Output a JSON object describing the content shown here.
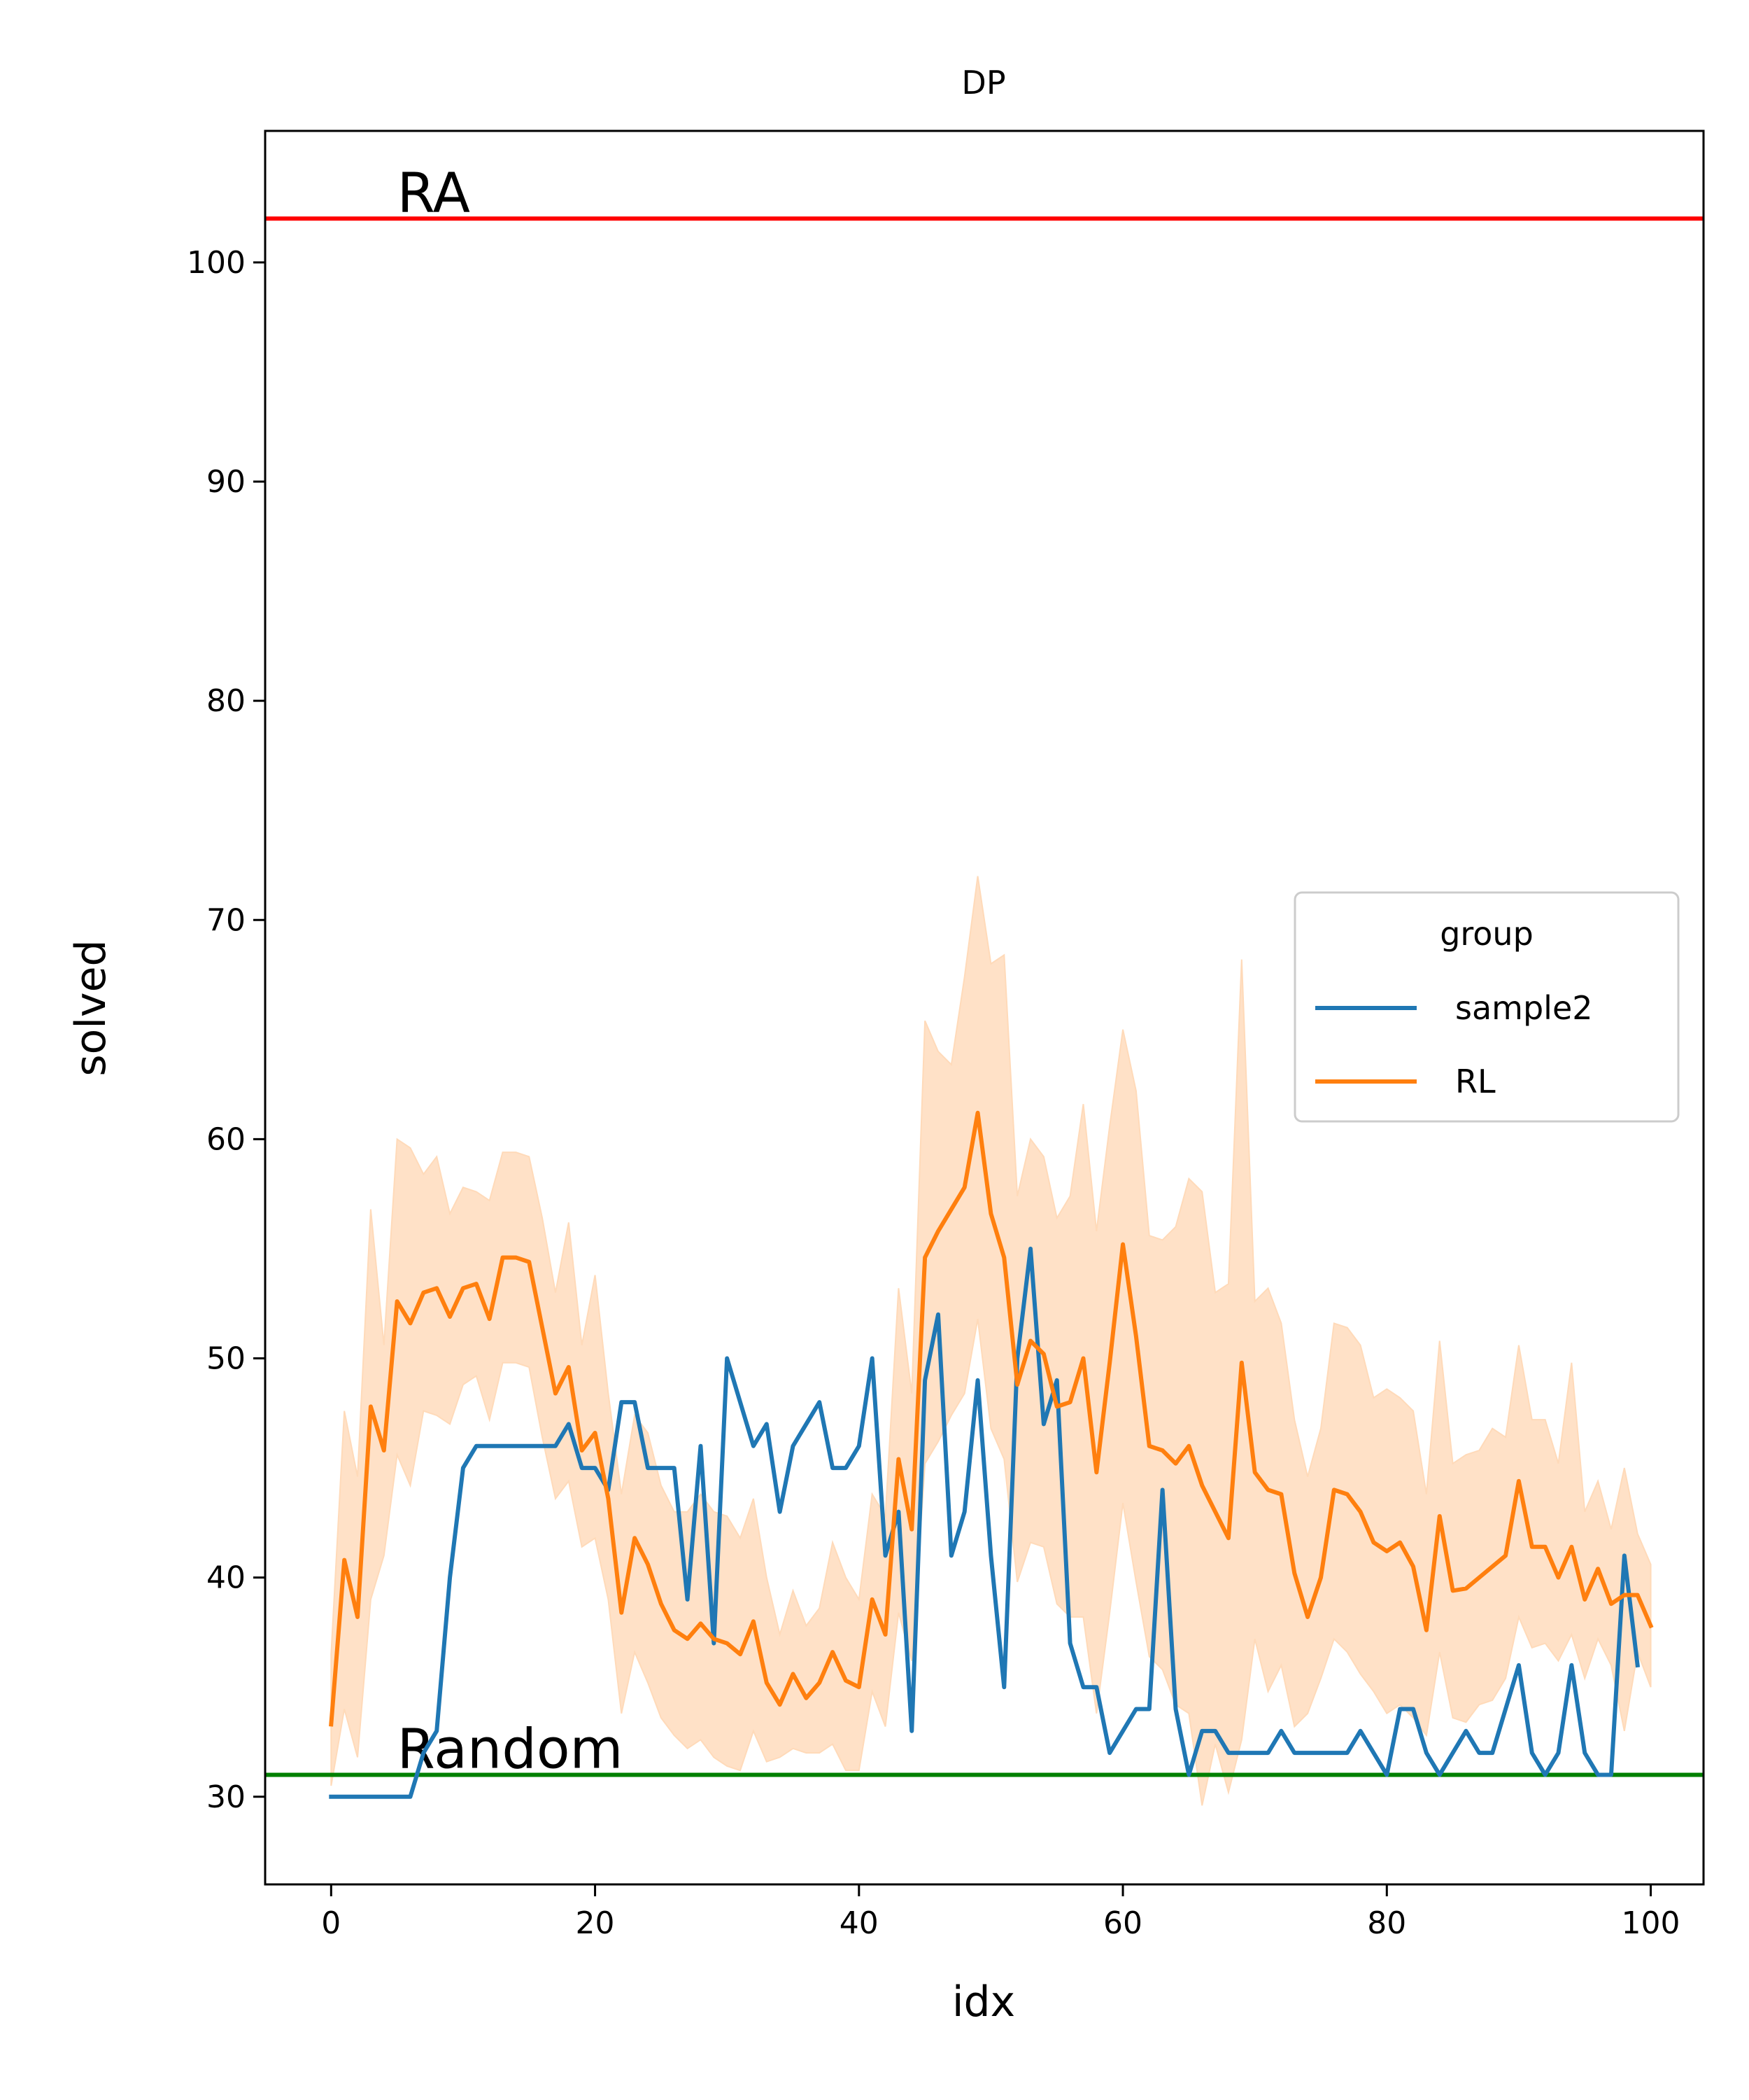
{
  "chart_data": {
    "type": "line",
    "title": "DP",
    "xlabel": "idx",
    "ylabel": "solved",
    "xlim": [
      -5,
      104
    ],
    "ylim": [
      26,
      106
    ],
    "xticks": [
      0,
      20,
      40,
      60,
      80,
      100
    ],
    "yticks": [
      30,
      40,
      50,
      60,
      70,
      80,
      90,
      100
    ],
    "grid": false,
    "legend": {
      "title": "group",
      "position": "center-right"
    },
    "reference_lines": [
      {
        "label": "RA",
        "y": 102,
        "color": "#ff0000"
      },
      {
        "label": "Random",
        "y": 31,
        "color": "#008000"
      }
    ],
    "series": [
      {
        "name": "sample2",
        "color": "#1f77b4",
        "values": [
          30,
          30,
          30,
          30,
          30,
          30,
          30,
          32,
          33,
          40,
          45,
          46,
          46,
          46,
          46,
          46,
          46,
          46,
          47,
          45,
          45,
          44,
          48,
          48,
          45,
          45,
          45,
          39,
          46,
          37,
          50,
          48,
          46,
          47,
          43,
          46,
          47,
          48,
          45,
          45,
          46,
          50,
          41,
          43,
          33,
          49,
          52,
          41,
          43,
          49,
          41,
          35,
          50,
          55,
          47,
          49,
          37,
          35,
          35,
          32,
          33,
          34,
          34,
          44,
          34,
          31,
          33,
          33,
          32,
          32,
          32,
          32,
          33,
          32,
          32,
          32,
          32,
          32,
          33,
          32,
          31,
          34,
          34,
          32,
          31,
          32,
          33,
          32,
          32,
          34,
          36,
          32,
          31,
          32,
          36,
          32,
          31,
          31,
          41,
          36
        ]
      },
      {
        "name": "RL",
        "color": "#ff7f0e",
        "band_color": "#ffdab9",
        "values": [
          33.3,
          40.8,
          38.2,
          47.8,
          45.8,
          52.6,
          51.6,
          53.0,
          53.2,
          51.9,
          53.2,
          53.4,
          51.8,
          54.6,
          54.6,
          54.4,
          51.4,
          48.4,
          49.6,
          45.8,
          46.6,
          43.6,
          38.4,
          41.8,
          40.6,
          38.8,
          37.6,
          37.2,
          37.9,
          37.2,
          37.0,
          36.5,
          38.0,
          35.2,
          34.2,
          35.6,
          34.5,
          35.2,
          36.6,
          35.3,
          35.0,
          39.0,
          37.4,
          45.4,
          42.2,
          54.6,
          55.8,
          56.8,
          57.8,
          61.2,
          56.6,
          54.6,
          48.8,
          50.8,
          50.2,
          47.8,
          48.0,
          50.0,
          44.8,
          49.8,
          55.2,
          51.0,
          46.0,
          45.8,
          45.2,
          46.0,
          44.2,
          43.0,
          41.8,
          49.8,
          44.8,
          44.0,
          43.8,
          40.2,
          38.2,
          40.0,
          44.0,
          43.8,
          43.0,
          41.6,
          41.2,
          41.6,
          40.5,
          37.6,
          42.8,
          39.4,
          39.5,
          40.0,
          40.5,
          41.0,
          44.4,
          41.4,
          41.4,
          40.0,
          41.4,
          39.0,
          40.4,
          38.8,
          39.2,
          39.2,
          37.8
        ],
        "lower": [
          30.5,
          34.0,
          31.8,
          39.0,
          41.0,
          45.6,
          44.2,
          47.6,
          47.4,
          47.0,
          48.8,
          49.2,
          47.2,
          49.8,
          49.8,
          49.6,
          46.4,
          43.6,
          44.4,
          41.4,
          41.8,
          39.0,
          33.8,
          36.6,
          35.2,
          33.6,
          32.8,
          32.2,
          32.6,
          31.8,
          31.4,
          31.2,
          33.0,
          31.6,
          31.8,
          32.2,
          32.0,
          32.0,
          32.4,
          31.2,
          31.2,
          34.8,
          33.2,
          38.4,
          36.2,
          45.2,
          46.2,
          47.4,
          48.4,
          51.8,
          46.8,
          45.4,
          39.8,
          41.6,
          41.4,
          38.8,
          38.2,
          38.2,
          33.8,
          38.4,
          43.4,
          39.8,
          36.4,
          35.8,
          34.2,
          33.8,
          29.6,
          32.4,
          30.2,
          32.6,
          37.2,
          34.8,
          36.0,
          33.2,
          33.8,
          35.4,
          37.2,
          36.6,
          35.6,
          34.8,
          33.8,
          34.2,
          33.6,
          32.8,
          36.6,
          33.6,
          33.4,
          34.2,
          34.4,
          35.4,
          38.2,
          36.8,
          37.0,
          36.2,
          37.4,
          35.4,
          37.2,
          36.0,
          33.0,
          36.6,
          35.0
        ],
        "upper": [
          36.5,
          47.6,
          44.6,
          56.8,
          50.6,
          60.0,
          59.6,
          58.4,
          59.2,
          56.6,
          57.8,
          57.6,
          57.2,
          59.4,
          59.4,
          59.2,
          56.4,
          53.0,
          56.2,
          50.6,
          53.8,
          48.4,
          43.8,
          47.4,
          46.6,
          44.2,
          43.0,
          43.0,
          43.8,
          43.0,
          42.8,
          41.8,
          43.6,
          40.0,
          37.4,
          39.4,
          37.8,
          38.6,
          41.6,
          40.0,
          39.0,
          43.8,
          42.8,
          53.2,
          48.4,
          65.4,
          64.0,
          63.4,
          67.4,
          72.0,
          68.0,
          68.4,
          57.4,
          60.0,
          59.2,
          56.4,
          57.4,
          61.6,
          55.8,
          60.6,
          65.0,
          62.2,
          55.6,
          55.4,
          56.0,
          58.2,
          57.6,
          53.0,
          53.4,
          68.2,
          52.6,
          53.2,
          51.6,
          47.2,
          44.6,
          46.8,
          51.6,
          51.4,
          50.6,
          48.2,
          48.6,
          48.2,
          47.6,
          43.8,
          50.8,
          45.2,
          45.6,
          45.8,
          46.8,
          46.4,
          50.6,
          47.2,
          47.2,
          45.2,
          49.8,
          43.0,
          44.4,
          42.2,
          45.0,
          42.0,
          40.6
        ]
      }
    ]
  }
}
